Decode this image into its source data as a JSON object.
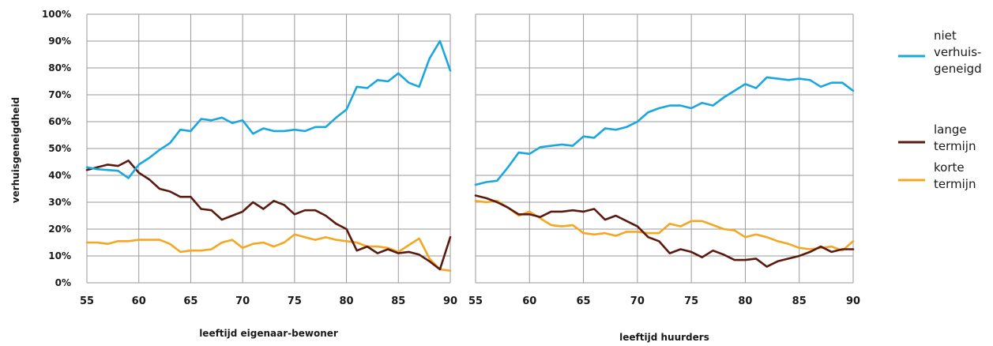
{
  "chart_data": {
    "type": "line",
    "ylabel": "verhuisgeneigdheid",
    "y_ticks": [
      "100%",
      "90%",
      "80%",
      "70%",
      "60%",
      "50%",
      "40%",
      "30%",
      "20%",
      "10%",
      "0%"
    ],
    "ylim": [
      0,
      100
    ],
    "grid": true,
    "legend_position": "right",
    "series_meta": [
      {
        "key": "niet",
        "name_lines": [
          "niet",
          "verhuis-",
          "geneigd"
        ],
        "color": "#1aa7e0"
      },
      {
        "key": "lange",
        "name_lines": [
          "lange",
          "termijn"
        ],
        "color": "#5a1a0f"
      },
      {
        "key": "korte",
        "name_lines": [
          "korte",
          "termijn"
        ],
        "color": "#f5a623"
      }
    ],
    "panels": [
      {
        "xlabel": "leeftijd eigenaar-bewoner",
        "x_ticks": [
          "55",
          "60",
          "65",
          "70",
          "75",
          "80",
          "85",
          "90"
        ],
        "xlim": [
          55,
          90
        ],
        "x": [
          55,
          56,
          57,
          58,
          59,
          60,
          61,
          62,
          63,
          64,
          65,
          66,
          67,
          68,
          69,
          70,
          71,
          72,
          73,
          74,
          75,
          76,
          77,
          78,
          79,
          80,
          81,
          82,
          83,
          84,
          85,
          86,
          87,
          88,
          89,
          90
        ],
        "series": {
          "niet": [
            43,
            42.3,
            42,
            41.7,
            39,
            44,
            46.5,
            49.5,
            52,
            57,
            56.5,
            61,
            60.5,
            61.5,
            59.5,
            60.5,
            55.5,
            57.5,
            56.5,
            56.5,
            57,
            56.5,
            58,
            58,
            61.5,
            64.5,
            73,
            72.5,
            75.5,
            75,
            78,
            74.5,
            73,
            83.5,
            90,
            79
          ],
          "lange": [
            42,
            43,
            44,
            43.5,
            45.5,
            41,
            38.5,
            35,
            34,
            32,
            32,
            27.5,
            27,
            23.5,
            25,
            26.5,
            30,
            27.5,
            30.5,
            29,
            25.5,
            27,
            27,
            25,
            22,
            20,
            12,
            13.5,
            11,
            12.5,
            11,
            11.5,
            10.5,
            8,
            5,
            17
          ],
          "korte": [
            15,
            15,
            14.5,
            15.5,
            15.5,
            16,
            16,
            16,
            14.5,
            11.5,
            12,
            12,
            12.5,
            15,
            16,
            13,
            14.5,
            15,
            13.5,
            15,
            18,
            17,
            16,
            17,
            16,
            15.5,
            15,
            13.5,
            13.5,
            13,
            11.5,
            14,
            16.5,
            9,
            5,
            4.5
          ]
        }
      },
      {
        "xlabel": "leeftijd huurders",
        "x_ticks": [
          "55",
          "60",
          "65",
          "70",
          "75",
          "80",
          "85",
          "90"
        ],
        "xlim": [
          55,
          90
        ],
        "x": [
          55,
          56,
          57,
          58,
          59,
          60,
          61,
          62,
          63,
          64,
          65,
          66,
          67,
          68,
          69,
          70,
          71,
          72,
          73,
          74,
          75,
          76,
          77,
          78,
          79,
          80,
          81,
          82,
          83,
          84,
          85,
          86,
          87,
          88,
          89,
          90
        ],
        "series": {
          "niet": [
            36.5,
            37.5,
            38,
            43,
            48.5,
            48,
            50.5,
            51,
            51.5,
            51,
            54.5,
            54,
            57.5,
            57,
            58,
            60,
            63.5,
            65,
            66,
            66,
            65,
            67,
            66,
            69,
            71.5,
            74,
            72.5,
            76.5,
            76,
            75.5,
            76,
            75.5,
            73,
            74.5,
            74.5,
            71.5
          ],
          "lange": [
            32.5,
            31.5,
            30,
            28,
            25.5,
            25.5,
            24.5,
            26.5,
            26.5,
            27,
            26.5,
            27.5,
            23.5,
            25,
            23,
            21,
            17,
            15.5,
            11,
            12.5,
            11.5,
            9.5,
            12,
            10.5,
            8.5,
            8.5,
            9,
            6,
            8,
            9,
            10,
            11.5,
            13.5,
            11.5,
            12.5,
            12.5
          ],
          "korte": [
            30.5,
            30,
            30.5,
            28,
            25,
            26.5,
            24,
            21.5,
            21,
            21.5,
            18.5,
            18,
            18.5,
            17.5,
            19,
            19,
            18.5,
            18.5,
            22,
            21,
            23,
            23,
            21.5,
            20,
            19.5,
            17,
            18,
            17,
            15.5,
            14.5,
            13,
            12.5,
            13,
            13.5,
            12,
            15.5
          ]
        }
      }
    ]
  }
}
